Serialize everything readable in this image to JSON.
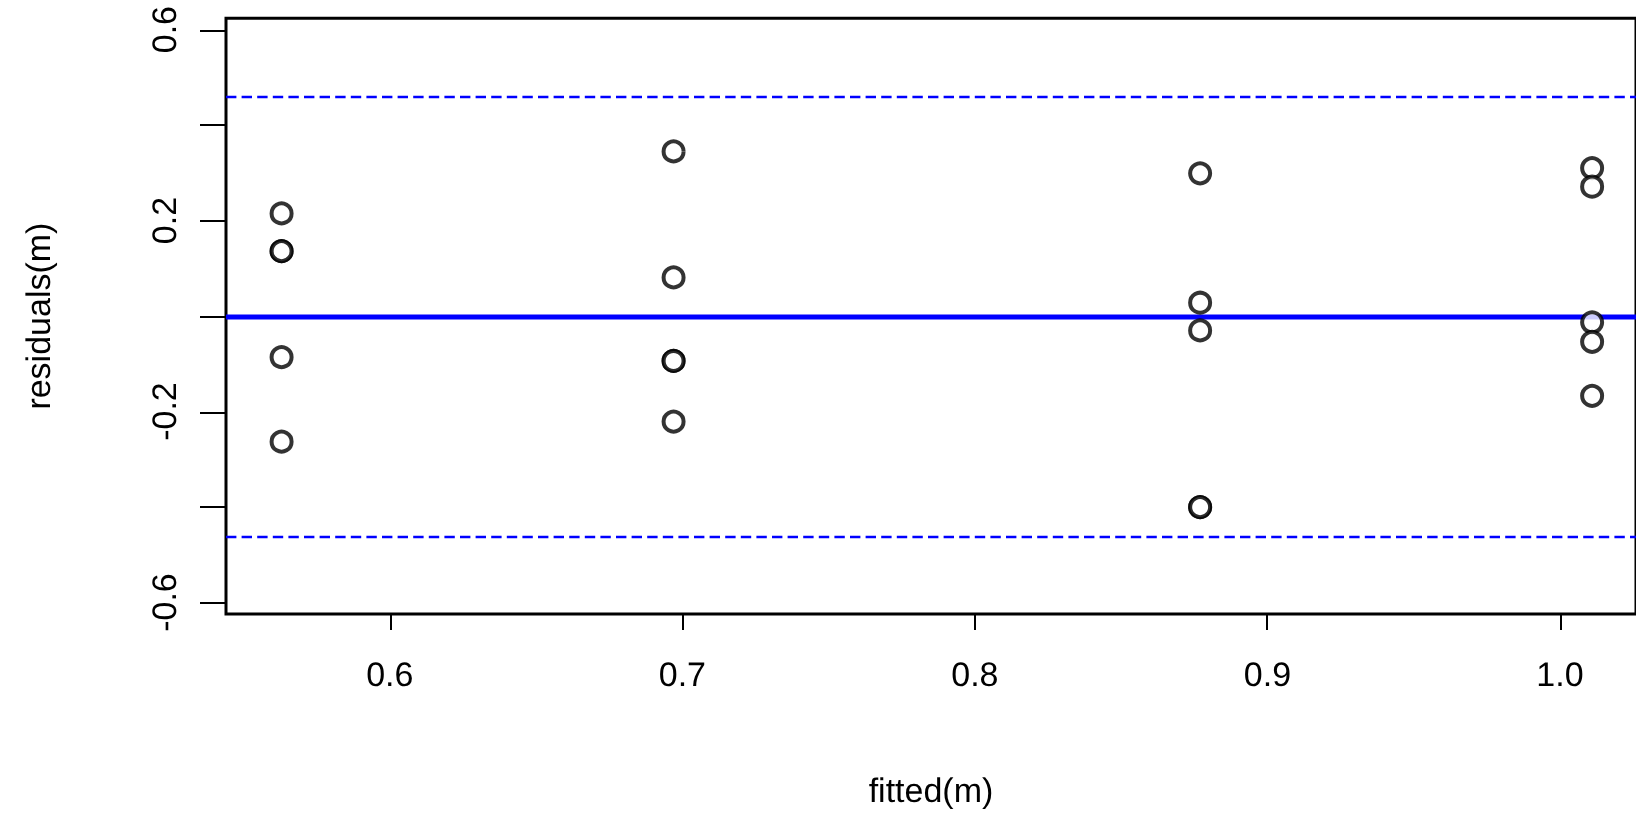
{
  "chart_data": {
    "type": "scatter",
    "xlabel": "fitted(m)",
    "ylabel": "residuals(m)",
    "x": [
      0.563,
      0.563,
      0.563,
      0.563,
      0.563,
      0.697,
      0.697,
      0.697,
      0.697,
      0.697,
      0.877,
      0.877,
      0.877,
      0.877,
      0.877,
      1.011,
      1.011,
      1.011,
      1.011,
      1.011
    ],
    "series": [
      {
        "color": "#000000",
        "values": [
          0.215,
          0.136,
          0.136,
          -0.086,
          -0.263,
          0.345,
          0.081,
          -0.094,
          -0.094,
          -0.221,
          0.299,
          0.028,
          -0.03,
          -0.4,
          -0.4,
          0.31,
          0.271,
          -0.013,
          -0.054,
          -0.167
        ]
      }
    ],
    "marker": "circle",
    "xlim": [
      0.544,
      1.026
    ],
    "xticks": [
      0.6,
      0.7,
      0.8,
      0.9,
      {
        "value": 1,
        "label": "1.0"
      }
    ],
    "ylim": [
      -0.624,
      0.624
    ],
    "yticks": [
      -0.6,
      {
        "value": -0.4,
        "label": null
      },
      -0.2,
      {
        "value": 0,
        "label": null
      },
      0.2,
      {
        "value": 0.4,
        "label": null
      },
      0.6
    ],
    "ref_lines": [
      {
        "axis": "y",
        "value": 0,
        "color": "#0000ff",
        "line_style": "solid"
      },
      {
        "axis": "y",
        "value": 0.46,
        "color": "#0000ff",
        "line_style": "dashed"
      },
      {
        "axis": "y",
        "value": -0.46,
        "color": "#0000ff",
        "line_style": "dashed"
      }
    ]
  }
}
